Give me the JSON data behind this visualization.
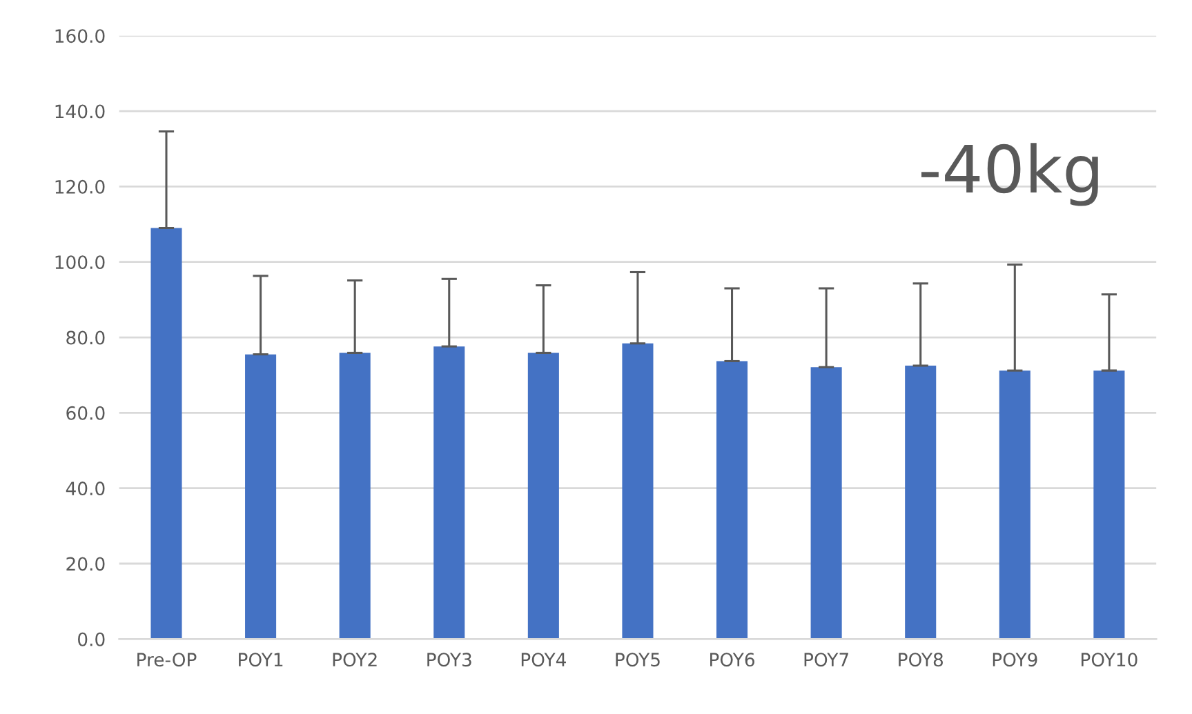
{
  "chart_data": {
    "type": "bar",
    "categories": [
      "Pre-OP",
      "POY1",
      "POY2",
      "POY3",
      "POY4",
      "POY5",
      "POY6",
      "POY7",
      "POY8",
      "POY9",
      "POY10"
    ],
    "values": [
      109,
      75.5,
      75.9,
      77.6,
      75.9,
      78.4,
      73.7,
      72.1,
      72.5,
      71.2,
      71.2
    ],
    "errors": [
      [
        109,
        134.6
      ],
      [
        75.5,
        96.3
      ],
      [
        75.9,
        95.1
      ],
      [
        77.6,
        95.5
      ],
      [
        75.9,
        93.8
      ],
      [
        78.4,
        97.3
      ],
      [
        73.7,
        93.0
      ],
      [
        72.1,
        93.0
      ],
      [
        72.5,
        94.3
      ],
      [
        71.2,
        99.3
      ],
      [
        71.2,
        91.4
      ]
    ],
    "color": "#4472c4",
    "ylim": [
      0,
      160
    ],
    "yticks": [
      {
        "value": 0,
        "label": "0.0"
      },
      {
        "value": 20,
        "label": "20.0"
      },
      {
        "value": 40,
        "label": "40.0"
      },
      {
        "value": 60,
        "label": "60.0"
      },
      {
        "value": 80,
        "label": "80.0"
      },
      {
        "value": 100,
        "label": "100.0"
      },
      {
        "value": 120,
        "label": "120.0"
      },
      {
        "value": 140,
        "label": "140.0"
      },
      {
        "value": 160,
        "label": "160.0"
      }
    ],
    "grid": "y",
    "annotations": [
      "-40kg"
    ]
  }
}
